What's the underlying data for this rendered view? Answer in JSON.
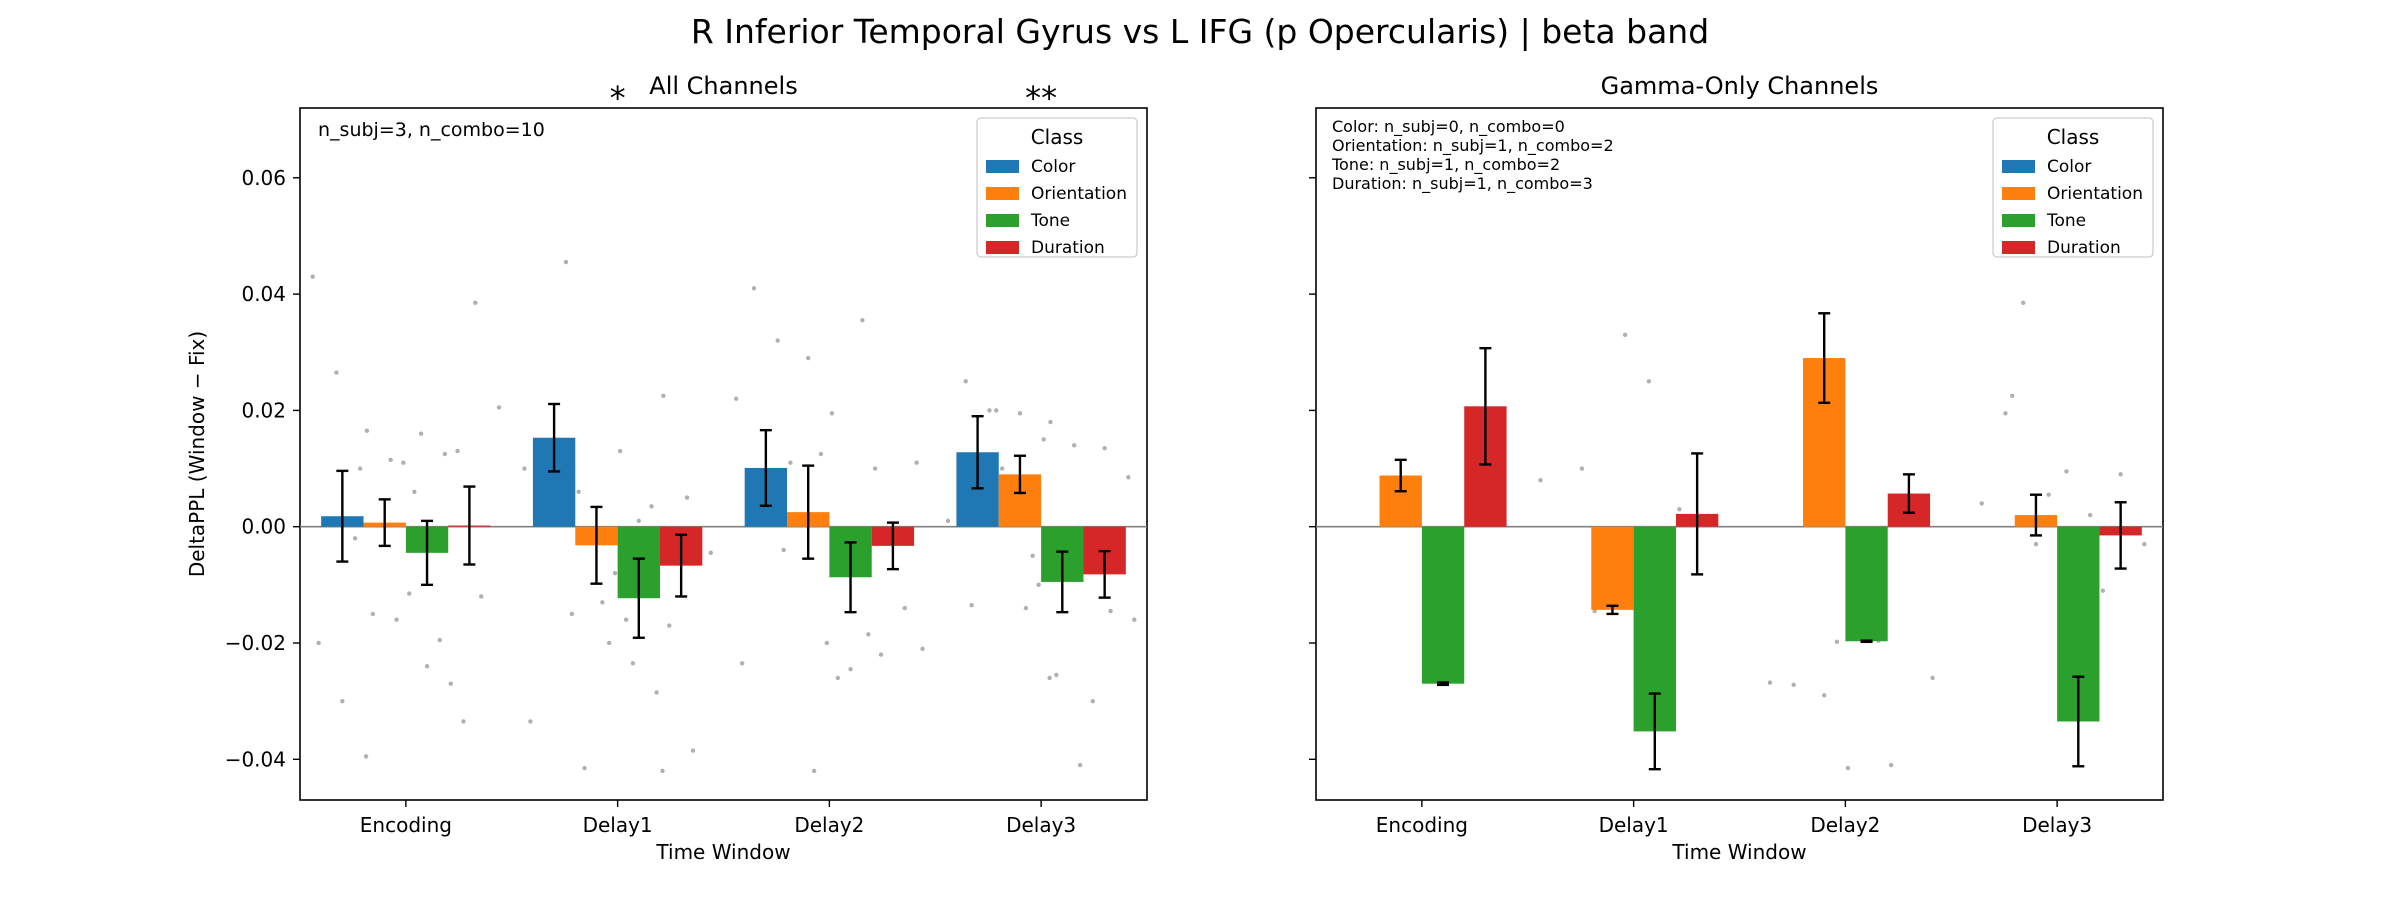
{
  "suptitle": "R Inferior Temporal Gyrus vs L IFG (p Opercularis)  |  beta band",
  "colors": {
    "Color": "#1f77b4",
    "Orientation": "#ff7f0e",
    "Tone": "#2ca02c",
    "Duration": "#d62728",
    "sig": "#d62728",
    "zero_line": "#808080",
    "points": "#b0b0b0"
  },
  "chart_data": [
    {
      "type": "bar",
      "title": "All Channels",
      "xlabel": "Time Window",
      "ylabel": "DeltaPPL (Window − Fix)",
      "ylim": [
        -0.047,
        0.072
      ],
      "yticks": [
        0.06,
        0.04,
        0.02,
        0.0,
        -0.02,
        -0.04
      ],
      "ytick_labels": [
        "0.06",
        "0.04",
        "0.02",
        "0.00",
        "−0.02",
        "−0.04"
      ],
      "categories": [
        "Encoding",
        "Delay1",
        "Delay2",
        "Delay3"
      ],
      "legend_title": "Class",
      "legend_position": "top-right",
      "annotation": "n_subj=3, n_combo=10",
      "significance": [
        {
          "category": "Delay1",
          "label": "*"
        },
        {
          "category": "Delay3",
          "label": "**"
        }
      ],
      "series": [
        {
          "name": "Color",
          "values": [
            0.0018,
            0.0153,
            0.0101,
            0.0128
          ],
          "errors": [
            0.0078,
            0.0058,
            0.0065,
            0.0062
          ]
        },
        {
          "name": "Orientation",
          "values": [
            0.0007,
            -0.0032,
            0.0025,
            0.009
          ],
          "errors": [
            0.004,
            0.0066,
            0.008,
            0.0032
          ]
        },
        {
          "name": "Tone",
          "values": [
            -0.0045,
            -0.0123,
            -0.0087,
            -0.0095
          ],
          "errors": [
            0.0055,
            0.0068,
            0.006,
            0.0052
          ]
        },
        {
          "name": "Duration",
          "values": [
            0.0002,
            -0.0067,
            -0.0033,
            -0.0082
          ],
          "errors": [
            0.0067,
            0.0053,
            0.004,
            0.004
          ]
        }
      ],
      "points": [
        [
          [
            0.043,
            0.0265,
            0.01,
            -0.02,
            -0.03,
            -0.0395
          ],
          [
            0.0165,
            0.0115,
            0.006,
            -0.015,
            -0.016,
            -0.002
          ],
          [
            0.016,
            0.0125,
            0.011,
            -0.024,
            -0.027,
            -0.0115
          ],
          [
            0.0385,
            0.0205,
            0.013,
            -0.012,
            -0.0195,
            -0.0335
          ]
        ],
        [
          [
            0.0455,
            0.01,
            0.005,
            -0.015,
            -0.0335,
            0.0015
          ],
          [
            0.013,
            0.006,
            -0.013,
            -0.016,
            -0.0415,
            -0.001
          ],
          [
            -0.02,
            -0.0235,
            -0.0285,
            -0.008,
            0.001,
            -0.042
          ],
          [
            0.0225,
            0.005,
            -0.0045,
            -0.017,
            -0.0385,
            0.0035
          ]
        ],
        [
          [
            0.041,
            0.032,
            0.022,
            0.001,
            -0.004,
            -0.0235
          ],
          [
            0.029,
            0.0195,
            0.011,
            -0.042,
            -0.026,
            0.0005
          ],
          [
            0.0355,
            0.0125,
            -0.0055,
            -0.0185,
            -0.02,
            -0.0245
          ],
          [
            0.011,
            0.01,
            -0.002,
            -0.021,
            -0.022,
            -0.014
          ]
        ],
        [
          [
            0.058,
            0.025,
            0.02,
            0.001,
            -0.0135,
            0.011
          ],
          [
            0.02,
            0.0195,
            0.015,
            0.01,
            -0.014,
            -0.026
          ],
          [
            0.018,
            0.014,
            -0.005,
            -0.0255,
            -0.041,
            -0.01
          ],
          [
            0.0135,
            0.0085,
            -0.003,
            -0.0145,
            -0.016,
            -0.03
          ]
        ]
      ]
    },
    {
      "type": "bar",
      "title": "Gamma-Only Channels",
      "xlabel": "Time Window",
      "ylabel": "",
      "ylim": [
        -0.047,
        0.072
      ],
      "yticks": [
        0.06,
        0.04,
        0.02,
        0.0,
        -0.02,
        -0.04
      ],
      "categories": [
        "Encoding",
        "Delay1",
        "Delay2",
        "Delay3"
      ],
      "legend_title": "Class",
      "legend_position": "top-right",
      "annotation_lines": [
        "Color: n_subj=0, n_combo=0",
        "Orientation: n_subj=1, n_combo=2",
        "Tone: n_subj=1, n_combo=2",
        "Duration: n_subj=1, n_combo=3"
      ],
      "series": [
        {
          "name": "Color",
          "values": [
            null,
            null,
            null,
            null
          ],
          "errors": [
            null,
            null,
            null,
            null
          ]
        },
        {
          "name": "Orientation",
          "values": [
            0.0088,
            -0.0143,
            0.029,
            0.002
          ],
          "errors": [
            0.0027,
            0.0007,
            0.0077,
            0.0035
          ]
        },
        {
          "name": "Tone",
          "values": [
            -0.027,
            -0.0352,
            -0.0197,
            -0.0335
          ],
          "errors": [
            0.0002,
            0.0065,
            0.0001,
            0.0077
          ]
        },
        {
          "name": "Duration",
          "values": [
            0.0207,
            0.0022,
            0.0057,
            -0.0015
          ],
          "errors": [
            0.01,
            0.0104,
            0.0033,
            0.0057
          ]
        }
      ],
      "points": [
        [
          [],
          [],
          [],
          []
        ],
        [
          [
            0.01,
            0.008
          ],
          [
            -0.014,
            -0.0145
          ],
          [
            0.033,
            0.025
          ],
          [
            0.003,
            0.001
          ]
        ],
        [
          [
            -0.0268,
            -0.0272
          ],
          [
            -0.029,
            -0.0415
          ],
          [
            -0.0196,
            -0.0198
          ],
          [
            -0.026,
            -0.041
          ]
        ],
        [
          [
            0.0385,
            0.004,
            0.0195
          ],
          [
            0.0225,
            -0.003,
            -0.0125
          ],
          [
            0.0095,
            0.002,
            0.0055
          ],
          [
            0.009,
            -0.003,
            -0.011
          ]
        ]
      ]
    }
  ]
}
